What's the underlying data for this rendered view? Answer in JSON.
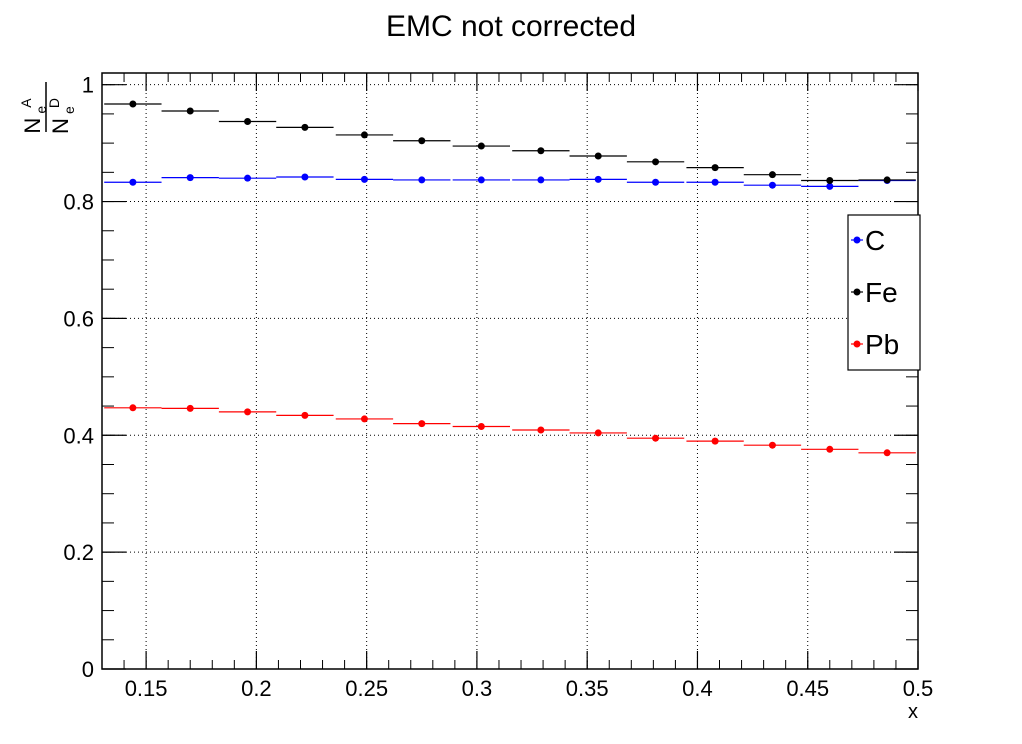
{
  "chart_data": {
    "type": "scatter",
    "title": "EMC not corrected",
    "xlabel": "x",
    "ylabel": {
      "numerator": "N",
      "numerator_sub": "e",
      "numerator_sup": "A",
      "denominator": "N",
      "denominator_sub": "e",
      "denominator_sup": "D"
    },
    "xlim": [
      0.13,
      0.5
    ],
    "ylim": [
      0,
      1.02
    ],
    "xticks": [
      "0.15",
      "0.2",
      "0.25",
      "0.3",
      "0.35",
      "0.4",
      "0.45",
      "0.5"
    ],
    "xtick_values": [
      0.15,
      0.2,
      0.25,
      0.3,
      0.35,
      0.4,
      0.45,
      0.5
    ],
    "yticks": [
      "0",
      "0.2",
      "0.4",
      "0.6",
      "0.8",
      "1"
    ],
    "ytick_values": [
      0,
      0.2,
      0.4,
      0.6,
      0.8,
      1.0
    ],
    "grid": true,
    "legend_position": "right",
    "series": [
      {
        "name": "C",
        "color": "#0000ff",
        "x": [
          0.144,
          0.17,
          0.196,
          0.222,
          0.249,
          0.275,
          0.302,
          0.329,
          0.355,
          0.381,
          0.408,
          0.434,
          0.46,
          0.486
        ],
        "y": [
          0.833,
          0.841,
          0.84,
          0.842,
          0.838,
          0.837,
          0.837,
          0.837,
          0.838,
          0.833,
          0.833,
          0.828,
          0.826,
          0.836
        ],
        "xerr": [
          0.013,
          0.013,
          0.013,
          0.013,
          0.013,
          0.013,
          0.013,
          0.013,
          0.013,
          0.013,
          0.013,
          0.013,
          0.013,
          0.013
        ]
      },
      {
        "name": "Fe",
        "color": "#000000",
        "x": [
          0.144,
          0.17,
          0.196,
          0.222,
          0.249,
          0.275,
          0.302,
          0.329,
          0.355,
          0.381,
          0.408,
          0.434,
          0.46,
          0.486
        ],
        "y": [
          0.967,
          0.955,
          0.937,
          0.927,
          0.914,
          0.904,
          0.895,
          0.887,
          0.878,
          0.868,
          0.858,
          0.846,
          0.836,
          0.837
        ],
        "xerr": [
          0.013,
          0.013,
          0.013,
          0.013,
          0.013,
          0.013,
          0.013,
          0.013,
          0.013,
          0.013,
          0.013,
          0.013,
          0.013,
          0.013
        ]
      },
      {
        "name": "Pb",
        "color": "#ff0000",
        "x": [
          0.144,
          0.17,
          0.196,
          0.222,
          0.249,
          0.275,
          0.302,
          0.329,
          0.355,
          0.381,
          0.408,
          0.434,
          0.46,
          0.486
        ],
        "y": [
          0.447,
          0.446,
          0.44,
          0.434,
          0.428,
          0.42,
          0.415,
          0.409,
          0.404,
          0.395,
          0.39,
          0.383,
          0.376,
          0.37
        ],
        "xerr": [
          0.013,
          0.013,
          0.013,
          0.013,
          0.013,
          0.013,
          0.013,
          0.013,
          0.013,
          0.013,
          0.013,
          0.013,
          0.013,
          0.013
        ]
      }
    ]
  }
}
